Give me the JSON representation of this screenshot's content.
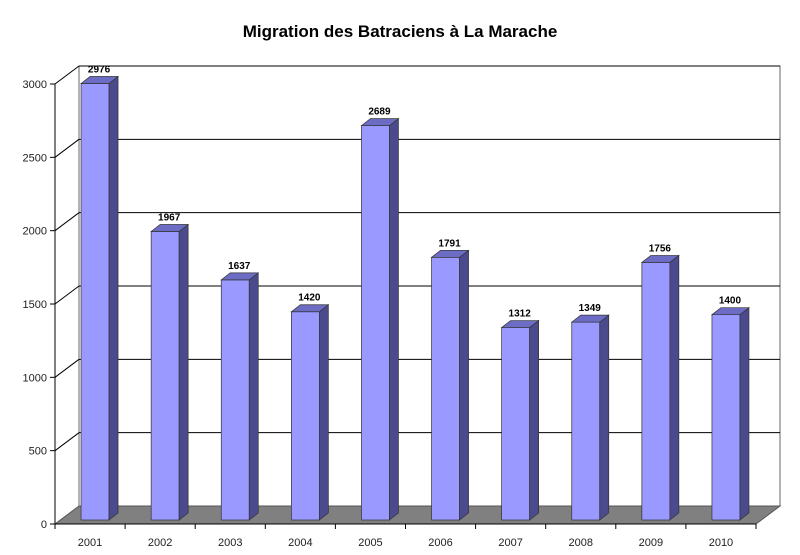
{
  "chart_data": {
    "type": "bar",
    "title": "Migration des Batraciens à La Marache",
    "xlabel": "",
    "ylabel": "",
    "categories": [
      "2001",
      "2002",
      "2003",
      "2004",
      "2005",
      "2006",
      "2007",
      "2008",
      "2009",
      "2010"
    ],
    "values": [
      2976,
      1967,
      1637,
      1420,
      2689,
      1791,
      1312,
      1349,
      1756,
      1400
    ],
    "ylim": [
      0,
      3000
    ],
    "yticks": [
      "0",
      "500",
      "1000",
      "1500",
      "2000",
      "2500",
      "3000"
    ],
    "grid": true,
    "legend": "none",
    "three_d": true,
    "colors": {
      "bar_front": "#9999ff",
      "bar_side": "#4a4a8c",
      "bar_top": "#6c6cc4",
      "floor": "#808080"
    }
  }
}
